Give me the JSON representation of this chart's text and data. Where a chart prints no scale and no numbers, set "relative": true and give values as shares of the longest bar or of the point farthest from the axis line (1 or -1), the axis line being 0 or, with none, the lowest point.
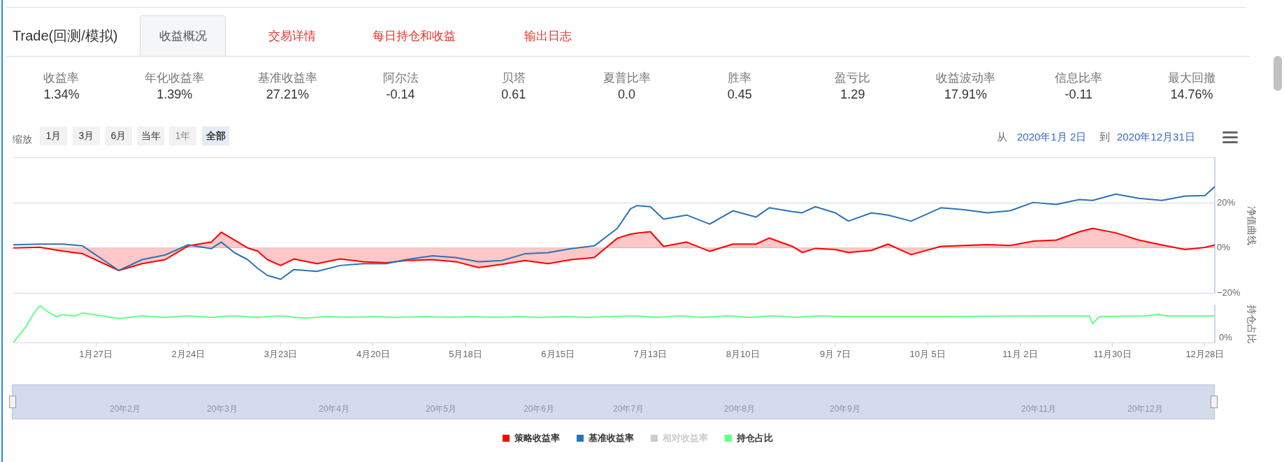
{
  "chart_data": [
    {
      "type": "other",
      "title": "Trade(回测/模拟)",
      "annotations": [
        "收益概况",
        "交易详情",
        "每日持仓和收益",
        "输出日志"
      ],
      "categories": [
        "收益率",
        "年化收益率",
        "基准收益率",
        "阿尔法",
        "贝塔",
        "夏普比率",
        "胜率",
        "盈亏比",
        "收益波动率",
        "信息比率",
        "最大回撤"
      ],
      "values": [
        1.34,
        1.39,
        27.21,
        -0.14,
        0.61,
        0.0,
        0.45,
        1.29,
        17.91,
        -0.11,
        14.76
      ],
      "value_labels": [
        "1.34%",
        "1.39%",
        "27.21%",
        "-0.14",
        "0.61",
        "0.0",
        "0.45",
        "1.29",
        "17.91%",
        "-0.11",
        "14.76%"
      ]
    },
    {
      "type": "line",
      "ylabel": "净值曲线",
      "xlim": [
        "2020-01-02",
        "2020-12-31"
      ],
      "ylim": [
        -20,
        40
      ],
      "yticks": [
        {
          "value": -20,
          "label": "−20%"
        },
        {
          "value": 0,
          "label": "0%"
        },
        {
          "value": 20,
          "label": "20%"
        },
        {
          "value": 40,
          "label": null
        }
      ],
      "grid": "y",
      "tick_labels": "y",
      "legend": "bottom",
      "annotations": [
        "缩放",
        "1月",
        "3月",
        "6月",
        "当年",
        "1年",
        "全部",
        "从",
        "2020年1月 2日",
        "到",
        "2020年12月31日",
        "20年2月",
        "20年3月",
        "20年4月",
        "20年5月",
        "20年6月",
        "20年7月",
        "20年8月",
        "20年9月",
        "20年11月",
        "20年12月"
      ],
      "x": [
        "2020-01-02",
        "2020-01-10",
        "2020-01-17",
        "2020-01-23",
        "2020-02-03",
        "2020-02-10",
        "2020-02-17",
        "2020-02-24",
        "2020-03-02",
        "2020-03-05",
        "2020-03-09",
        "2020-03-13",
        "2020-03-16",
        "2020-03-19",
        "2020-03-23",
        "2020-03-27",
        "2020-04-03",
        "2020-04-10",
        "2020-04-17",
        "2020-04-24",
        "2020-04-30",
        "2020-05-08",
        "2020-05-15",
        "2020-05-22",
        "2020-05-29",
        "2020-06-05",
        "2020-06-12",
        "2020-06-19",
        "2020-06-26",
        "2020-07-03",
        "2020-07-07",
        "2020-07-09",
        "2020-07-13",
        "2020-07-17",
        "2020-07-24",
        "2020-07-31",
        "2020-08-07",
        "2020-08-14",
        "2020-08-18",
        "2020-08-25",
        "2020-08-28",
        "2020-09-01",
        "2020-09-07",
        "2020-09-11",
        "2020-09-18",
        "2020-09-23",
        "2020-09-30",
        "2020-10-09",
        "2020-10-16",
        "2020-10-23",
        "2020-10-30",
        "2020-11-06",
        "2020-11-13",
        "2020-11-20",
        "2020-11-24",
        "2020-12-01",
        "2020-12-08",
        "2020-12-15",
        "2020-12-22",
        "2020-12-28",
        "2020-12-31"
      ],
      "series": [
        {
          "name": "策略收益率",
          "type": "area",
          "color": "#ff0000",
          "values": [
            0,
            0.3,
            -1.4,
            -2.6,
            -10,
            -7,
            -5.2,
            0.9,
            2.6,
            7,
            3.5,
            0,
            -1.4,
            -5.2,
            -7.8,
            -4.9,
            -7,
            -4.9,
            -6.1,
            -6.6,
            -5.6,
            -5.2,
            -6.1,
            -8.7,
            -7.3,
            -5.6,
            -7,
            -5.2,
            -4.3,
            4.3,
            6.1,
            6.6,
            7.2,
            0.7,
            2.6,
            -1.5,
            1.7,
            1.7,
            4.4,
            0.7,
            -2,
            -0.2,
            -0.7,
            -2,
            -1.1,
            1.7,
            -3,
            0.7,
            1.1,
            1.5,
            1.1,
            3,
            3.5,
            7.2,
            8.7,
            6.7,
            3.5,
            1.3,
            -0.7,
            0.2,
            1.3
          ]
        },
        {
          "name": "基准收益率",
          "color": "#2b73b6",
          "values": [
            1.4,
            1.7,
            1.7,
            0.9,
            -10,
            -5.2,
            -3.1,
            1.4,
            -0.3,
            2.6,
            -2.1,
            -5.2,
            -9,
            -12.2,
            -13.9,
            -9.6,
            -10.4,
            -7.8,
            -7,
            -7,
            -5.2,
            -3.5,
            -4.3,
            -6.1,
            -5.6,
            -2.6,
            -2.1,
            -0.3,
            0.9,
            8.7,
            17.4,
            18.8,
            18.3,
            12.8,
            14.6,
            10.6,
            16.5,
            13.7,
            17.8,
            16.1,
            15.6,
            18.3,
            15.6,
            11.9,
            15.6,
            14.6,
            11.9,
            17.8,
            17,
            15.6,
            16.5,
            20.2,
            19.3,
            21.5,
            21.1,
            23.9,
            22,
            21.1,
            23,
            23.3,
            27.2
          ]
        },
        {
          "name": "相对收益率",
          "color": "#cccccc",
          "values": [
            null,
            null,
            null,
            null,
            null,
            null,
            null,
            null,
            null,
            null,
            null,
            null,
            null,
            null,
            null,
            null,
            null,
            null,
            null,
            null,
            null,
            null,
            null,
            null,
            null,
            null,
            null,
            null,
            null,
            null,
            null,
            null,
            null,
            null,
            null,
            null,
            null,
            null,
            null,
            null,
            null,
            null,
            null,
            null,
            null,
            null,
            null,
            null,
            null,
            null,
            null,
            null,
            null,
            null,
            null,
            null,
            null,
            null,
            null,
            null,
            null
          ]
        }
      ]
    },
    {
      "type": "line",
      "ylabel": "持仓占比",
      "relative": true,
      "xlim": [
        "2020-01-02",
        "2020-12-31"
      ],
      "xticks": [
        {
          "value": "2020-01-27",
          "label": "1月27日"
        },
        {
          "value": "2020-02-24",
          "label": "2月24日"
        },
        {
          "value": "2020-03-23",
          "label": "3月23日"
        },
        {
          "value": "2020-04-20",
          "label": "4月20日"
        },
        {
          "value": "2020-05-18",
          "label": "5月18日"
        },
        {
          "value": "2020-06-15",
          "label": "6月15日"
        },
        {
          "value": "2020-07-13",
          "label": "7月13日"
        },
        {
          "value": "2020-08-10",
          "label": "8月10日"
        },
        {
          "value": "2020-09-07",
          "label": "9月 7日"
        },
        {
          "value": "2020-10-05",
          "label": "10月 5日"
        },
        {
          "value": "2020-11-02",
          "label": "11月 2日"
        },
        {
          "value": "2020-11-30",
          "label": "11月30日"
        },
        {
          "value": "2020-12-28",
          "label": "12月28日"
        }
      ],
      "tick_labels": "x",
      "legend": "bottom",
      "annotations": [
        "0%"
      ],
      "series": [
        {
          "name": "持仓占比",
          "color": "#66ff8c",
          "x": [
            "2020-01-02",
            "2020-01-06",
            "2020-01-08",
            "2020-01-10",
            "2020-01-13",
            "2020-01-15",
            "2020-01-17",
            "2020-01-21",
            "2020-01-23",
            "2020-02-03",
            "2020-02-10",
            "2020-02-17",
            "2020-02-24",
            "2020-03-02",
            "2020-03-09",
            "2020-03-16",
            "2020-03-23",
            "2020-03-30",
            "2020-04-06",
            "2020-04-13",
            "2020-04-20",
            "2020-04-27",
            "2020-05-06",
            "2020-05-13",
            "2020-05-20",
            "2020-05-27",
            "2020-06-03",
            "2020-06-10",
            "2020-06-17",
            "2020-06-24",
            "2020-07-01",
            "2020-07-08",
            "2020-07-15",
            "2020-07-22",
            "2020-07-29",
            "2020-08-05",
            "2020-08-12",
            "2020-08-19",
            "2020-08-26",
            "2020-09-02",
            "2020-09-09",
            "2020-10-09",
            "2020-11-09",
            "2020-11-23",
            "2020-11-24",
            "2020-11-26",
            "2020-12-10",
            "2020-12-14",
            "2020-12-16",
            "2020-12-31"
          ],
          "values": [
            0,
            0.45,
            0.75,
            1,
            0.8,
            0.7,
            0.75,
            0.72,
            0.8,
            0.65,
            0.72,
            0.68,
            0.72,
            0.68,
            0.72,
            0.68,
            0.72,
            0.66,
            0.7,
            0.68,
            0.7,
            0.68,
            0.7,
            0.68,
            0.7,
            0.68,
            0.7,
            0.68,
            0.7,
            0.68,
            0.7,
            0.72,
            0.68,
            0.72,
            0.68,
            0.72,
            0.68,
            0.72,
            0.68,
            0.72,
            0.7,
            0.7,
            0.72,
            0.72,
            0.51,
            0.7,
            0.72,
            0.76,
            0.72,
            0.72
          ]
        }
      ]
    }
  ]
}
